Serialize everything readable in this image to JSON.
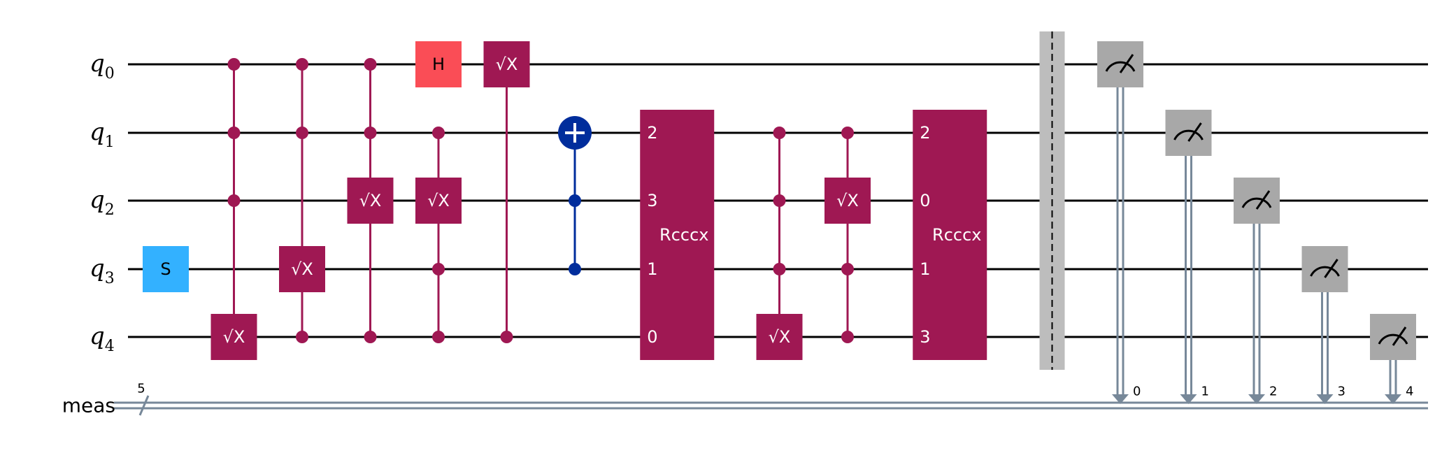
{
  "qubits": [
    {
      "name": "q",
      "index": "0"
    },
    {
      "name": "q",
      "index": "1"
    },
    {
      "name": "q",
      "index": "2"
    },
    {
      "name": "q",
      "index": "3"
    },
    {
      "name": "q",
      "index": "4"
    }
  ],
  "classical": {
    "name": "meas",
    "width": "5"
  },
  "colors": {
    "sx": "#9f1853",
    "h": "#fa4d56",
    "s": "#33b1ff",
    "cx": "#002d9c",
    "measure": "#a8a8a8",
    "barrier": "#bdbdbd",
    "cwire": "#778899"
  },
  "labels": {
    "sx": "√X",
    "h": "H",
    "s": "S",
    "rcccx": "Rcccx"
  },
  "gates": [
    {
      "type": "s",
      "col": 1,
      "target": 3
    },
    {
      "type": "mcsx",
      "col": 2,
      "controls": [
        0,
        1,
        2
      ],
      "target": 4
    },
    {
      "type": "mcsx",
      "col": 3,
      "controls": [
        0,
        1,
        4
      ],
      "target": 3
    },
    {
      "type": "mcsx",
      "col": 4,
      "controls": [
        0,
        1,
        4
      ],
      "target": 2
    },
    {
      "type": "h",
      "col": 5,
      "target": 0
    },
    {
      "type": "mcsx",
      "col": 5,
      "controls": [
        1,
        3,
        4
      ],
      "target": 2
    },
    {
      "type": "mcsx",
      "col": 6,
      "controls": [
        4
      ],
      "target": 0
    },
    {
      "type": "ccx",
      "col": 7,
      "controls": [
        2,
        3
      ],
      "target": 1
    },
    {
      "type": "rcccx",
      "col": 8.5,
      "qubit_labels": [
        "2",
        "3",
        "1",
        "0"
      ]
    },
    {
      "type": "mcsx",
      "col": 10,
      "controls": [
        1,
        2,
        3
      ],
      "target": 4
    },
    {
      "type": "mcsx",
      "col": 11,
      "controls": [
        1,
        3,
        4
      ],
      "target": 2
    },
    {
      "type": "rcccx",
      "col": 12.5,
      "qubit_labels": [
        "2",
        "0",
        "1",
        "3"
      ]
    },
    {
      "type": "barrier",
      "col": 14
    },
    {
      "type": "measure",
      "col": 15,
      "qubit": 0,
      "bit": "0"
    },
    {
      "type": "measure",
      "col": 16,
      "qubit": 1,
      "bit": "1"
    },
    {
      "type": "measure",
      "col": 17,
      "qubit": 2,
      "bit": "2"
    },
    {
      "type": "measure",
      "col": 18,
      "qubit": 3,
      "bit": "3"
    },
    {
      "type": "measure",
      "col": 19,
      "qubit": 4,
      "bit": "4"
    }
  ]
}
